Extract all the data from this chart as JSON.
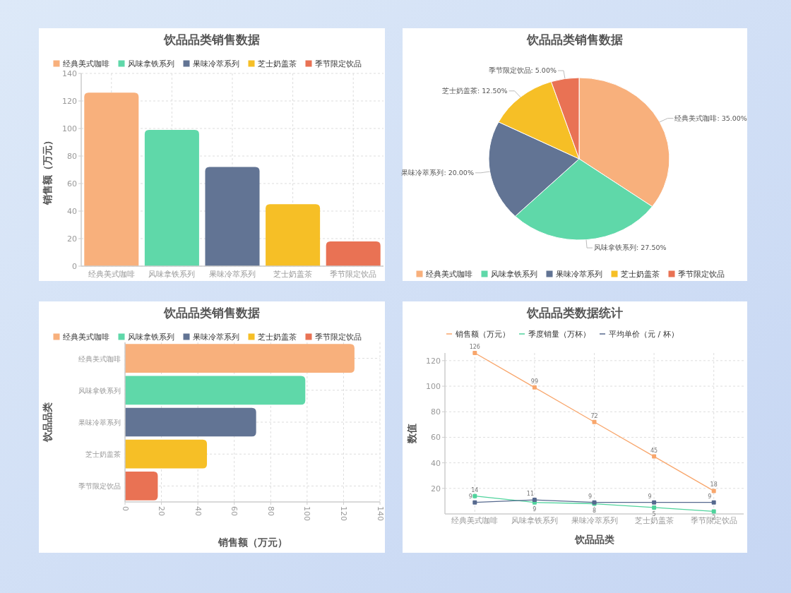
{
  "chart_data": [
    {
      "type": "bar",
      "title": "饮品品类销售数据",
      "ylabel": "销售额（万元）",
      "categories": [
        "经典美式咖啡",
        "风味拿铁系列",
        "果味冷萃系列",
        "芝士奶盖茶",
        "季节限定饮品"
      ],
      "stacked": true,
      "series": [
        {
          "name": "经典美式咖啡",
          "color": "#f8b07c",
          "values": [
            126,
            null,
            null,
            null,
            null
          ]
        },
        {
          "name": "风味拿铁系列",
          "color": "#5fd8a9",
          "values": [
            null,
            99,
            null,
            null,
            null
          ]
        },
        {
          "name": "果味冷萃系列",
          "color": "#627494",
          "values": [
            null,
            null,
            72,
            null,
            null
          ]
        },
        {
          "name": "芝士奶盖茶",
          "color": "#f6bf26",
          "values": [
            null,
            null,
            null,
            45,
            null
          ]
        },
        {
          "name": "季节限定饮品",
          "color": "#e97254",
          "values": [
            null,
            null,
            null,
            null,
            18
          ]
        }
      ],
      "ylim": [
        0,
        140
      ],
      "yticks": [
        0,
        20,
        40,
        60,
        80,
        100,
        120,
        140
      ],
      "grid": true,
      "legend": "top"
    },
    {
      "type": "pie",
      "title": "饮品品类销售数据",
      "categories": [
        "经典美式咖啡",
        "风味拿铁系列",
        "果味冷萃系列",
        "芝士奶盖茶",
        "季节限定饮品"
      ],
      "values": [
        35,
        27.5,
        20,
        12.5,
        5
      ],
      "value_labels": [
        "经典美式咖啡: 35.00%",
        "风味拿铁系列: 27.50%",
        "果味冷萃系列: 20.00%",
        "芝士奶盖茶: 12.50%",
        "季节限定饮品: 5.00%"
      ],
      "colors": [
        "#f8b07c",
        "#5fd8a9",
        "#627494",
        "#f6bf26",
        "#e97254"
      ],
      "legend": "bottom"
    },
    {
      "type": "bar",
      "orientation": "horizontal",
      "title": "饮品品类销售数据",
      "xlabel": "销售额（万元）",
      "ylabel": "饮品品类",
      "categories": [
        "经典美式咖啡",
        "风味拿铁系列",
        "果味冷萃系列",
        "芝士奶盖茶",
        "季节限定饮品"
      ],
      "stacked": true,
      "series": [
        {
          "name": "经典美式咖啡",
          "color": "#f8b07c",
          "values": [
            126,
            null,
            null,
            null,
            null
          ]
        },
        {
          "name": "风味拿铁系列",
          "color": "#5fd8a9",
          "values": [
            null,
            99,
            null,
            null,
            null
          ]
        },
        {
          "name": "果味冷萃系列",
          "color": "#627494",
          "values": [
            null,
            null,
            72,
            null,
            null
          ]
        },
        {
          "name": "芝士奶盖茶",
          "color": "#f6bf26",
          "values": [
            null,
            null,
            null,
            45,
            null
          ]
        },
        {
          "name": "季节限定饮品",
          "color": "#e97254",
          "values": [
            null,
            null,
            null,
            null,
            18
          ]
        }
      ],
      "xlim": [
        0,
        140
      ],
      "xticks": [
        0,
        20,
        40,
        60,
        80,
        100,
        120,
        140
      ],
      "grid": true,
      "legend": "top"
    },
    {
      "type": "line",
      "title": "饮品品类数据统计",
      "xlabel": "饮品品类",
      "ylabel": "数值",
      "categories": [
        "经典美式咖啡",
        "风味拿铁系列",
        "果味冷萃系列",
        "芝士奶盖茶",
        "季节限定饮品"
      ],
      "series": [
        {
          "name": "销售额（万元）",
          "color": "#f8a66c",
          "values": [
            126,
            99,
            72,
            45,
            18
          ]
        },
        {
          "name": "季度销量（万杯）",
          "color": "#4fd39c",
          "values": [
            14,
            9,
            8,
            5,
            2
          ]
        },
        {
          "name": "平均单价（元 / 杯）",
          "color": "#56698e",
          "values": [
            9,
            11,
            9,
            9,
            9
          ]
        }
      ],
      "ylim": [
        0,
        126
      ],
      "yticks": [
        20,
        40,
        60,
        80,
        100,
        120
      ],
      "grid": true,
      "legend": "top",
      "marker": "square",
      "data_labels": true
    }
  ]
}
